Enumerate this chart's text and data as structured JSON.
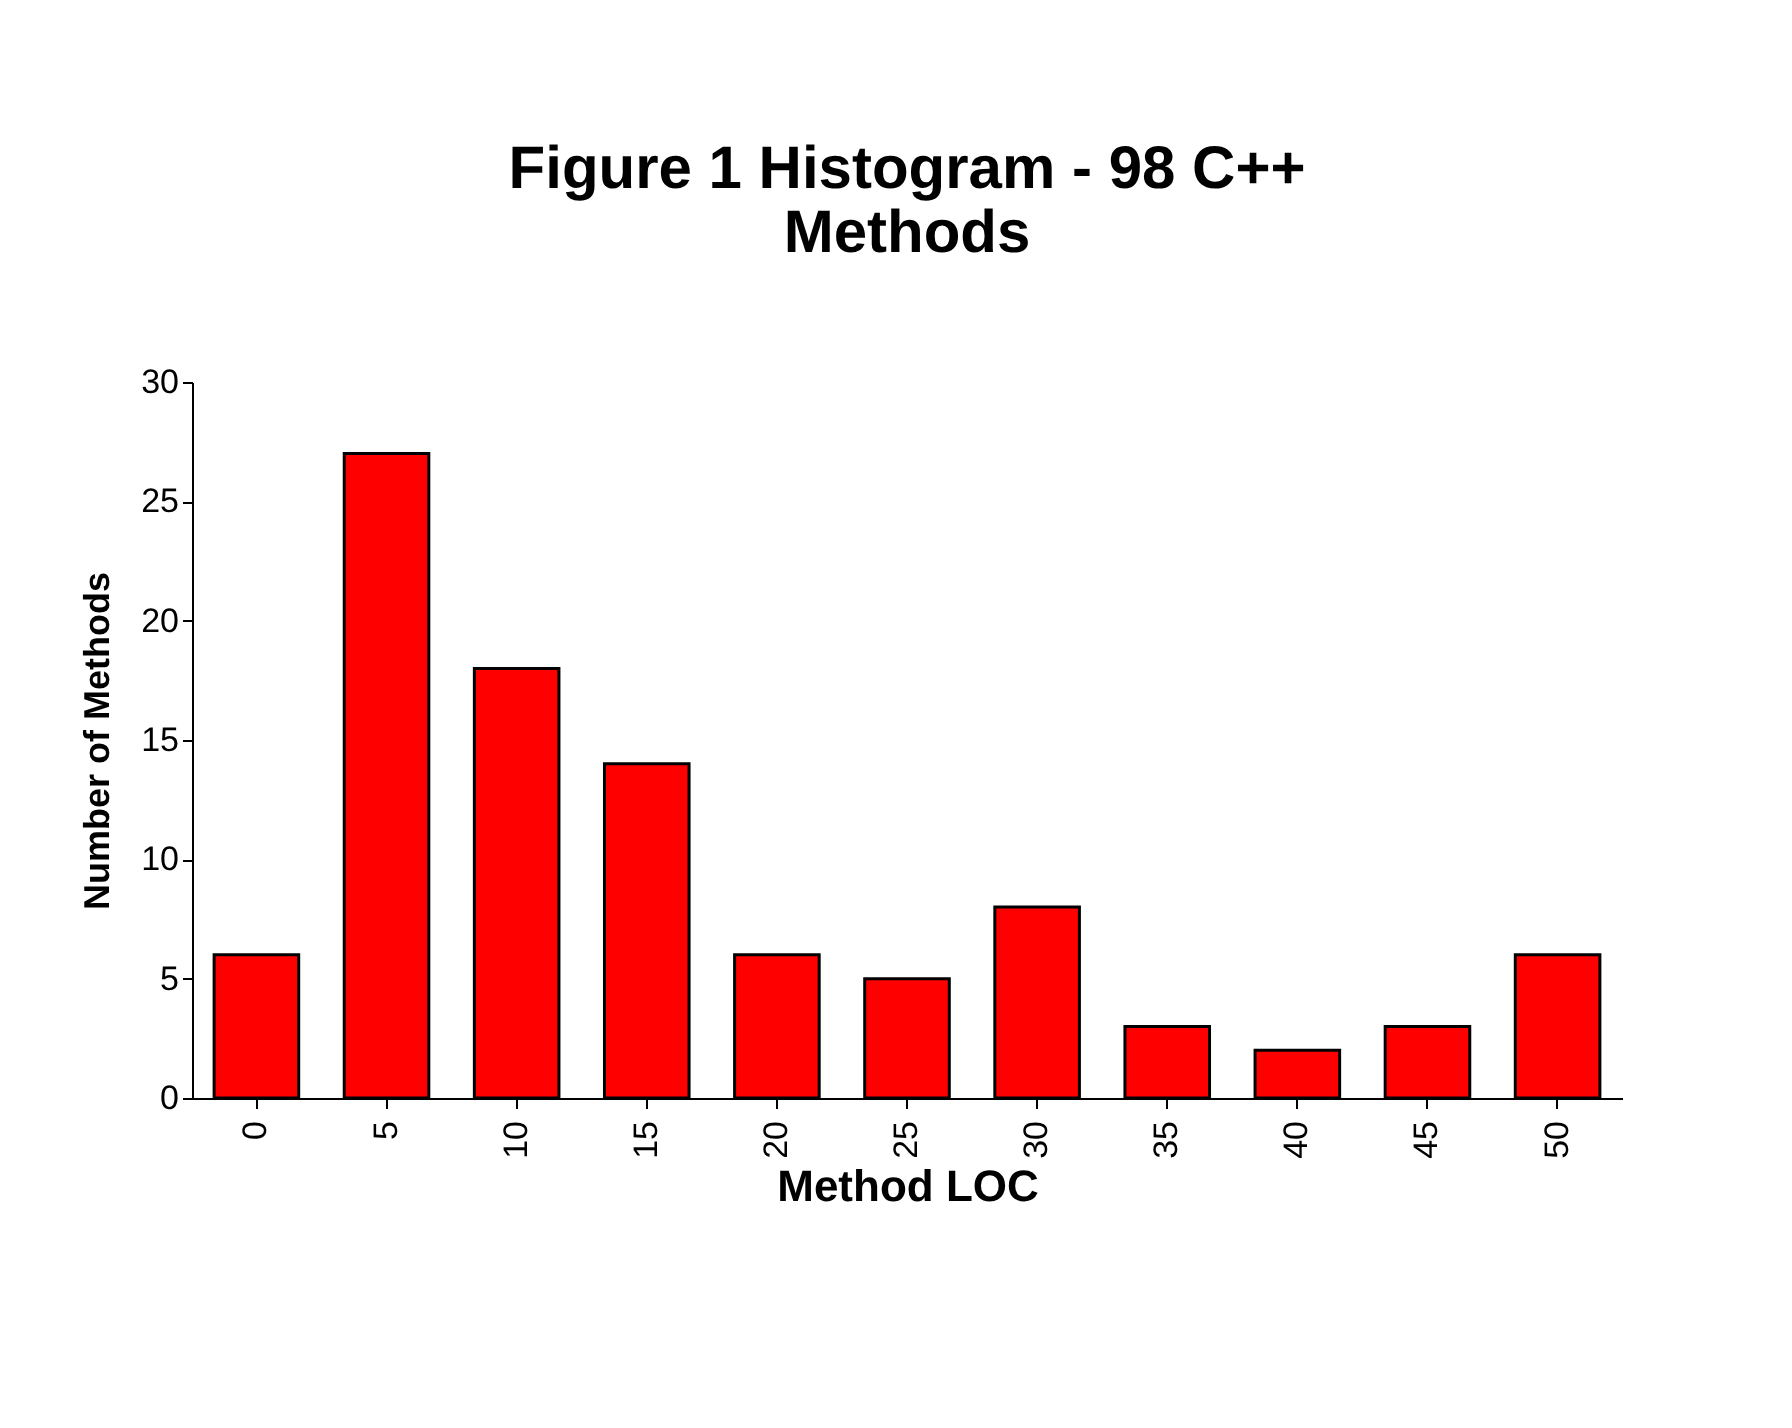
{
  "chart_data": {
    "type": "bar",
    "title": "Figure 1  Histogram - 98 C++ Methods",
    "xlabel": "Method LOC",
    "ylabel": "Number of Methods",
    "categories": [
      "0",
      "5",
      "10",
      "15",
      "20",
      "25",
      "30",
      "35",
      "40",
      "45",
      "50"
    ],
    "values": [
      6,
      27,
      18,
      14,
      6,
      5,
      8,
      3,
      2,
      3,
      6
    ],
    "color": "#ff0000",
    "ylim": [
      0,
      30
    ],
    "yticks": [
      0,
      5,
      10,
      15,
      20,
      25,
      30
    ],
    "grid": false
  }
}
